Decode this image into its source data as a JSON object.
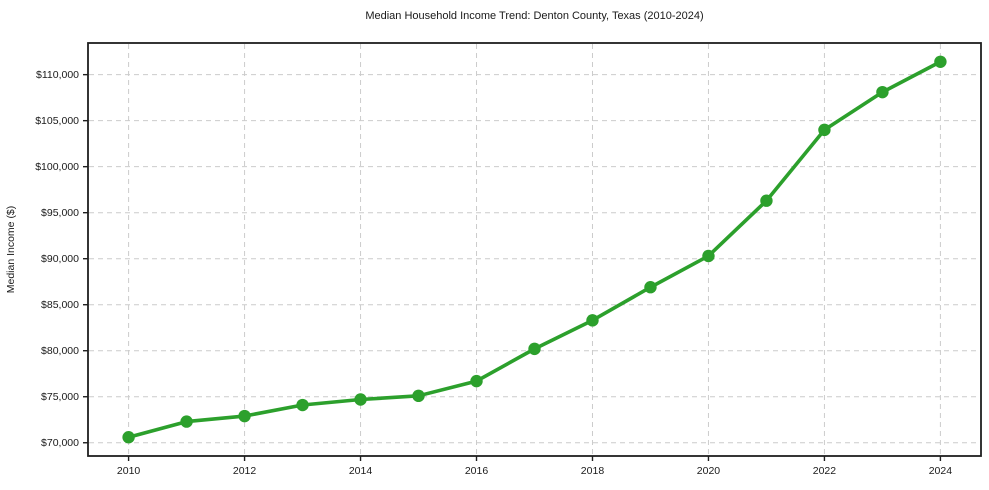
{
  "chart_data": {
    "type": "line",
    "title": "Median Household Income Trend: Denton County, Texas (2010-2024)",
    "xlabel": "",
    "ylabel": "Median Income ($)",
    "x": [
      2010,
      2011,
      2012,
      2013,
      2014,
      2015,
      2016,
      2017,
      2018,
      2019,
      2020,
      2021,
      2022,
      2023,
      2024
    ],
    "y": [
      70600,
      72300,
      72900,
      74100,
      74700,
      75100,
      76700,
      80200,
      83300,
      86900,
      90300,
      96300,
      104000,
      108100,
      111400
    ],
    "xlim": [
      2009.3,
      2024.7
    ],
    "ylim": [
      68560,
      113440
    ],
    "x_ticks": [
      2010,
      2012,
      2014,
      2016,
      2018,
      2020,
      2022,
      2024
    ],
    "x_tick_labels": [
      "2010",
      "2012",
      "2014",
      "2016",
      "2018",
      "2020",
      "2022",
      "2024"
    ],
    "y_ticks": [
      70000,
      75000,
      80000,
      85000,
      90000,
      95000,
      100000,
      105000,
      110000
    ],
    "y_tick_labels": [
      "$70,000",
      "$75,000",
      "$80,000",
      "$85,000",
      "$90,000",
      "$95,000",
      "$100,000",
      "$105,000",
      "$110,000"
    ],
    "grid": true,
    "legend": "none",
    "line_color": "#2ca02c",
    "grid_color": "#cccccc",
    "spine_color": "#1f1f1f",
    "text_color": "#1a1a1a",
    "marker": "circle"
  }
}
